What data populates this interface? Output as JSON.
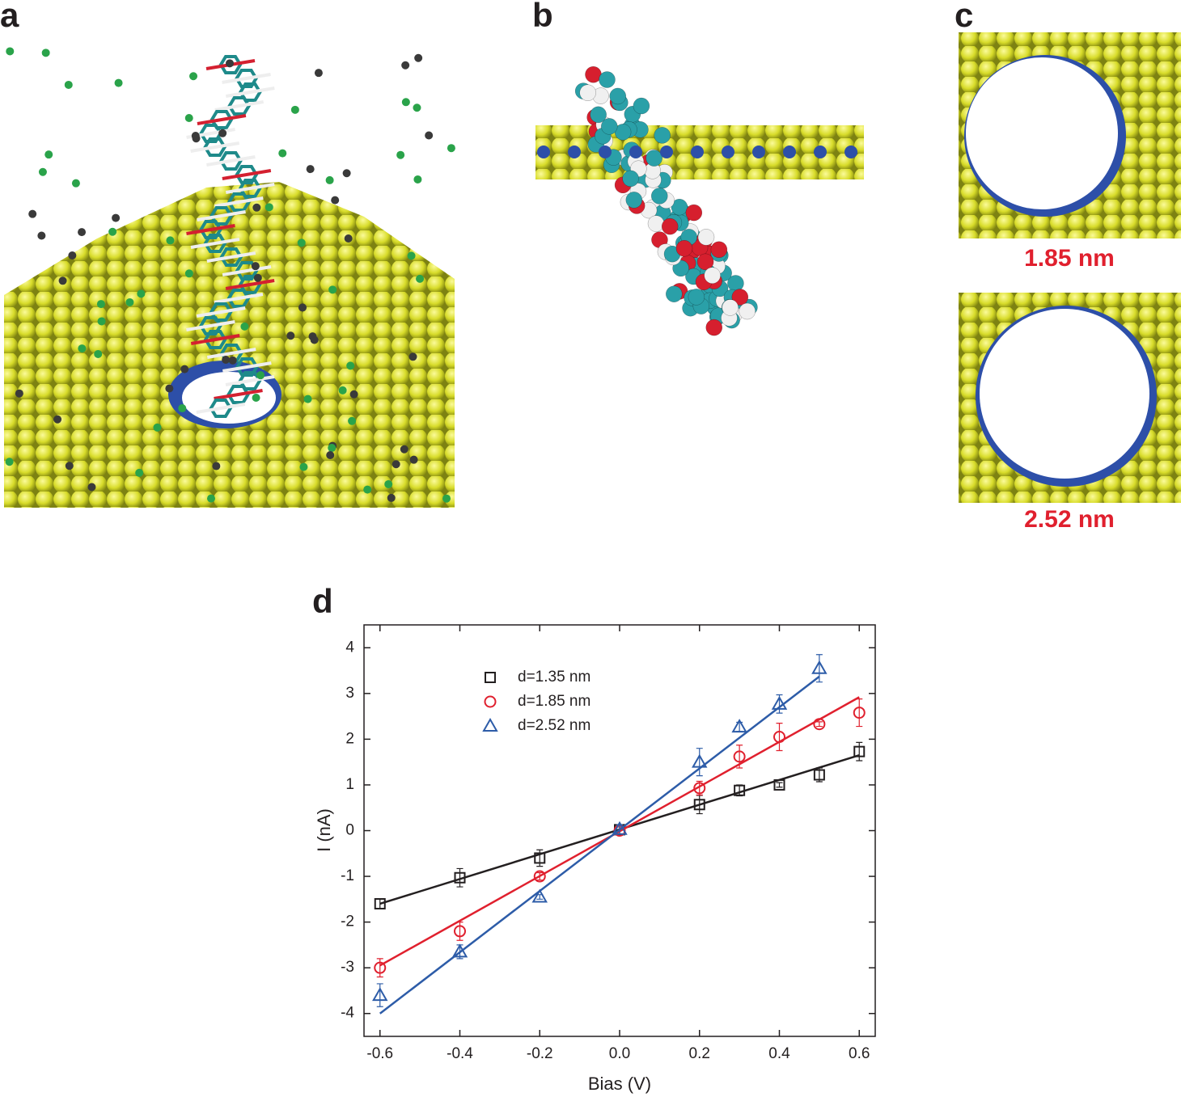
{
  "panel_labels": [
    "a",
    "b",
    "c",
    "d"
  ],
  "pore_labels": [
    "1.85 nm",
    "2.52 nm"
  ],
  "chart_data": {
    "type": "scatter",
    "x_label": "Bias (V)",
    "y_label": "I (nA)",
    "xlim": [
      -0.64,
      0.64
    ],
    "ylim": [
      -4.5,
      4.5
    ],
    "xticks": [
      -0.6,
      -0.4,
      -0.2,
      {
        "value": 0,
        "label": "0.0"
      },
      0.2,
      0.4,
      0.6
    ],
    "yticks": [
      -4,
      -3,
      -2,
      -1,
      0,
      1,
      2,
      3,
      4
    ],
    "series": [
      {
        "name": "d=1.35 nm",
        "color": "#231f20",
        "marker": "square",
        "x": [
          -0.6,
          -0.4,
          -0.2,
          0,
          0.2,
          0.3,
          0.4,
          0.5,
          0.6
        ],
        "values": [
          -1.6,
          -1.03,
          -0.6,
          0.02,
          0.57,
          0.88,
          1.0,
          1.22,
          1.73
        ],
        "errors": [
          0.1,
          0.2,
          0.18,
          0.1,
          0.2,
          0.12,
          0.05,
          0.15,
          0.2
        ],
        "fit_x": [
          -0.6,
          0.6
        ],
        "fit_y": [
          -1.6,
          1.65
        ]
      },
      {
        "name": "d=1.85 nm",
        "color": "#e0202e",
        "marker": "circle",
        "x": [
          -0.6,
          -0.4,
          -0.2,
          0,
          0.2,
          0.3,
          0.4,
          0.5,
          0.6
        ],
        "values": [
          -3.0,
          -2.2,
          -1.0,
          0.0,
          0.93,
          1.62,
          2.05,
          2.33,
          2.58
        ],
        "errors": [
          0.2,
          0.2,
          0.08,
          0.08,
          0.15,
          0.25,
          0.3,
          0.05,
          0.3
        ],
        "fit_x": [
          -0.6,
          0.6
        ],
        "fit_y": [
          -2.95,
          2.92
        ]
      },
      {
        "name": "d=2.52 nm",
        "color": "#2d5ca8",
        "marker": "triangle",
        "x": [
          -0.6,
          -0.4,
          -0.2,
          0,
          0.2,
          0.3,
          0.4,
          0.5
        ],
        "values": [
          -3.6,
          -2.65,
          -1.45,
          0.03,
          1.5,
          2.27,
          2.77,
          3.55
        ],
        "errors": [
          0.25,
          0.15,
          0.05,
          0.1,
          0.3,
          0.1,
          0.2,
          0.3
        ],
        "fit_x": [
          -0.6,
          0.5
        ],
        "fit_y": [
          -4.0,
          3.37
        ]
      }
    ]
  }
}
